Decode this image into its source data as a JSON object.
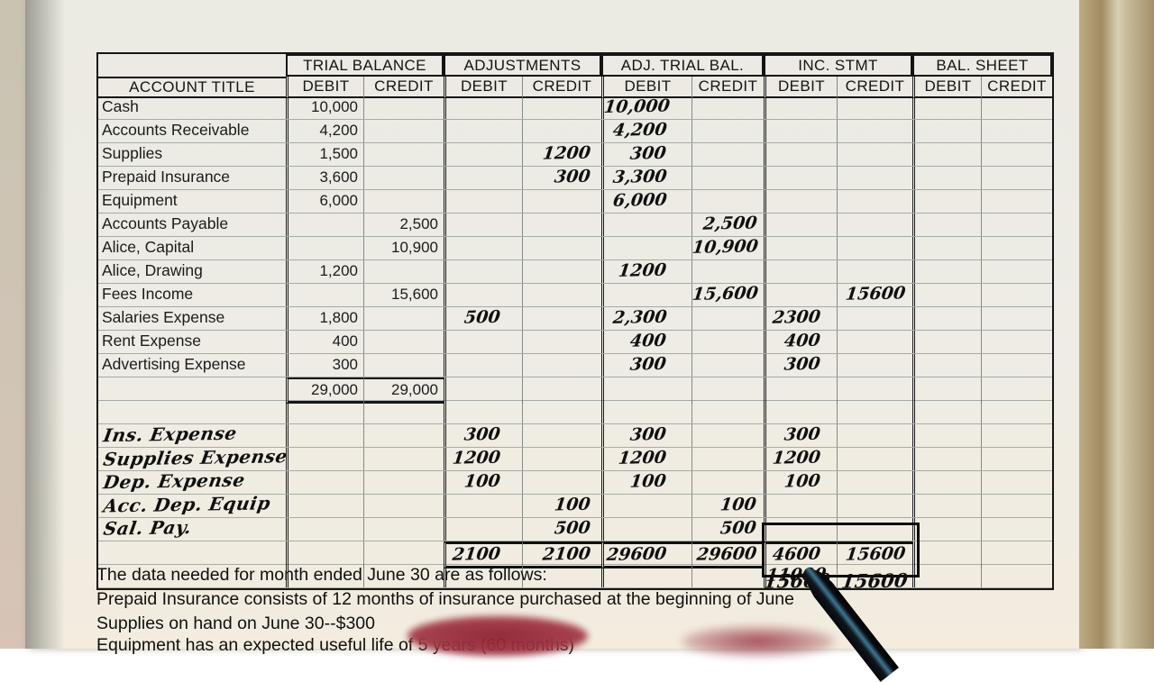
{
  "colors": {
    "paper": "#eeece4",
    "desk": "#a3906a",
    "ink": "#1b1b1b",
    "grid": "rgba(105,118,118,0.55)",
    "pen_sheen": "#3e7693",
    "smudge": "#8e2131"
  },
  "table": {
    "account_title_label": "ACCOUNT TITLE",
    "debit_label": "DEBIT",
    "credit_label": "CREDIT",
    "sections": {
      "trial_balance": "TRIAL BALANCE",
      "adjustments": "ADJUSTMENTS",
      "adj_trial_bal": "ADJ. TRIAL BAL.",
      "inc_stmt": "INC. STMT",
      "bal_sheet": "BAL. SHEET"
    },
    "rows": [
      {
        "t": "Cash",
        "th": false,
        "v": [
          "10,000",
          "",
          "",
          "",
          "10,000",
          "",
          "",
          "",
          "",
          ""
        ]
      },
      {
        "t": "Accounts Receivable",
        "th": false,
        "v": [
          "4,200",
          "",
          "",
          "",
          "4,200",
          "",
          "",
          "",
          "",
          ""
        ]
      },
      {
        "t": "Supplies",
        "th": false,
        "v": [
          "1,500",
          "",
          "",
          "1200",
          "300",
          "",
          "",
          "",
          "",
          ""
        ]
      },
      {
        "t": "Prepaid Insurance",
        "th": false,
        "v": [
          "3,600",
          "",
          "",
          "300",
          "3,300",
          "",
          "",
          "",
          "",
          ""
        ]
      },
      {
        "t": "Equipment",
        "th": false,
        "v": [
          "6,000",
          "",
          "",
          "",
          "6,000",
          "",
          "",
          "",
          "",
          ""
        ]
      },
      {
        "t": "Accounts Payable",
        "th": false,
        "v": [
          "",
          "2,500",
          "",
          "",
          "",
          "2,500",
          "",
          "",
          "",
          ""
        ]
      },
      {
        "t": "Alice, Capital",
        "th": false,
        "v": [
          "",
          "10,900",
          "",
          "",
          "",
          "10,900",
          "",
          "",
          "",
          ""
        ]
      },
      {
        "t": "Alice, Drawing",
        "th": false,
        "v": [
          "1,200",
          "",
          "",
          "",
          "1200",
          "",
          "",
          "",
          "",
          ""
        ]
      },
      {
        "t": "Fees Income",
        "th": false,
        "v": [
          "",
          "15,600",
          "",
          "",
          "",
          "15,600",
          "",
          "15600",
          "",
          ""
        ]
      },
      {
        "t": "Salaries Expense",
        "th": false,
        "v": [
          "1,800",
          "",
          "500",
          "",
          "2,300",
          "",
          "2300",
          "",
          "",
          ""
        ]
      },
      {
        "t": "Rent Expense",
        "th": false,
        "v": [
          "400",
          "",
          "",
          "",
          "400",
          "",
          "400",
          "",
          "",
          ""
        ]
      },
      {
        "t": "Advertising Expense",
        "th": false,
        "v": [
          "300",
          "",
          "",
          "",
          "300",
          "",
          "300",
          "",
          "",
          ""
        ]
      },
      {
        "t": "",
        "th": false,
        "cls": "tb-total",
        "v": [
          "29,000",
          "29,000",
          "",
          "",
          "",
          "",
          "",
          "",
          "",
          ""
        ]
      },
      {
        "t": "",
        "th": false,
        "v": [
          "",
          "",
          "",
          "",
          "",
          "",
          "",
          "",
          "",
          ""
        ]
      },
      {
        "t": "Ins. Expense",
        "th": true,
        "v": [
          "",
          "",
          "300",
          "",
          "300",
          "",
          "300",
          "",
          "",
          ""
        ]
      },
      {
        "t": "Supplies Expense",
        "th": true,
        "v": [
          "",
          "",
          "1200",
          "",
          "1200",
          "",
          "1200",
          "",
          "",
          ""
        ]
      },
      {
        "t": "Dep. Expense",
        "th": true,
        "v": [
          "",
          "",
          "100",
          "",
          "100",
          "",
          "100",
          "",
          "",
          ""
        ]
      },
      {
        "t": "Acc. Dep. Equip",
        "th": true,
        "v": [
          "",
          "",
          "",
          "100",
          "",
          "100",
          "",
          "",
          "",
          ""
        ]
      },
      {
        "t": "Sal. Pay.",
        "th": true,
        "v": [
          "",
          "",
          "",
          "500",
          "",
          "500",
          "",
          "",
          "",
          ""
        ]
      },
      {
        "t": "",
        "th": false,
        "cls": "grand",
        "v": [
          "",
          "",
          "2100",
          "2100",
          "29600",
          "29600",
          "4600",
          "15600",
          "",
          ""
        ]
      },
      {
        "t": "",
        "th": false,
        "cls": "net",
        "v": [
          "",
          "",
          "",
          "",
          "",
          "",
          "11000",
          "",
          "",
          ""
        ]
      }
    ],
    "below_totals": {
      "inc_debit": "15600",
      "inc_credit": "15600"
    }
  },
  "footer": {
    "lines": [
      "The data needed for month ended June 30 are as follows:",
      "Prepaid Insurance consists of 12 months of insurance purchased at the beginning of June",
      "Supplies on hand on June 30--$300",
      "Equipment has an expected useful life of 5 years (60 months)"
    ]
  }
}
